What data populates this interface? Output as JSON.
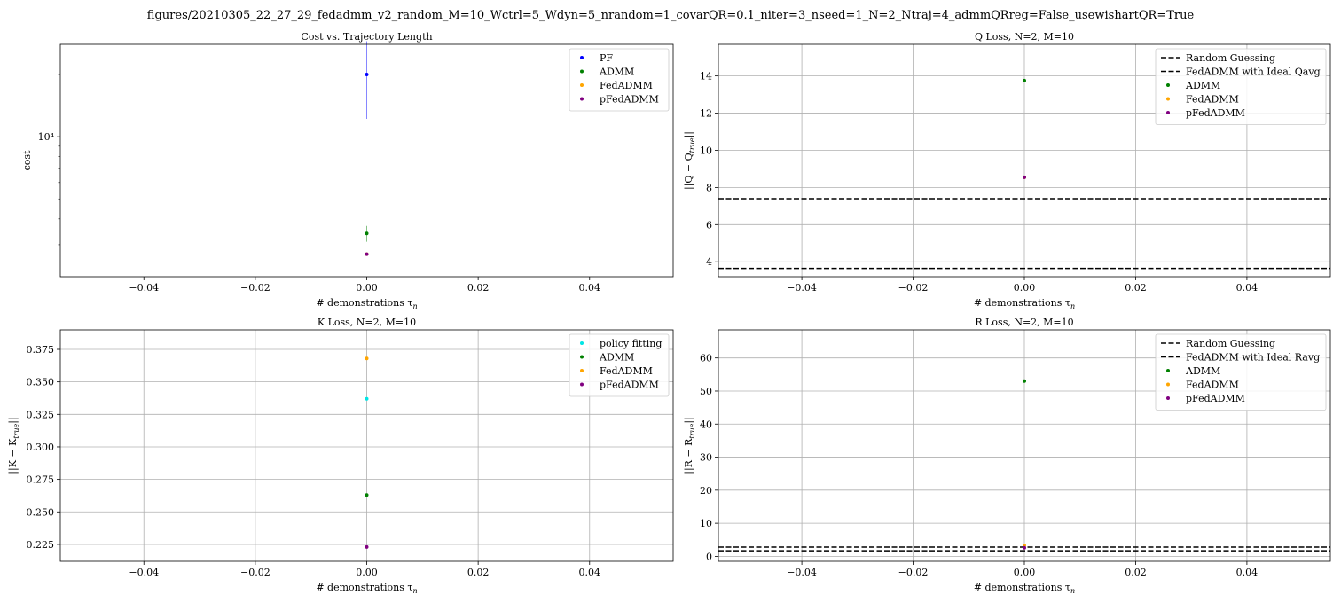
{
  "figure": {
    "suptitle": "figures/20210305_22_27_29_fedadmm_v2_random_M=10_Wctrl=5_Wdyn=5_nrandom=1_covarQR=0.1_niter=3_nseed=1_N=2_Ntraj=4_admmQRreg=False_usewishartQR=True"
  },
  "colors": {
    "PF": "#0000ff",
    "policy_fitting": "#00e5e5",
    "ADMM": "#008000",
    "FedADMM": "#ffa500",
    "pFedADMM": "#800080",
    "reference": "#000000",
    "grid": "#b0b0b0"
  },
  "chart_data": [
    {
      "id": "cost",
      "type": "scatter",
      "title": "Cost vs. Trajectory Length",
      "xlabel": "# demonstrations τ",
      "xlabel_sub": "n",
      "ylabel": "cost",
      "yscale": "log",
      "xlim": [
        -0.055,
        0.055
      ],
      "ylim": [
        2100,
        28000
      ],
      "x_ticks": [
        -0.04,
        -0.02,
        0.0,
        0.02,
        0.04
      ],
      "x_tick_labels": [
        "−0.04",
        "−0.02",
        "0.00",
        "0.02",
        "0.04"
      ],
      "y_ticks": [
        10000
      ],
      "y_tick_labels": [
        "10⁴"
      ],
      "grid": false,
      "legend_position": "top-right",
      "series": [
        {
          "name": "PF",
          "color_key": "PF",
          "x": [
            0.0
          ],
          "y": [
            20000
          ],
          "err": [
            [
              12200,
              29000
            ]
          ]
        },
        {
          "name": "ADMM",
          "color_key": "ADMM",
          "x": [
            0.0
          ],
          "y": [
            3400
          ],
          "err": [
            [
              3100,
              3700
            ]
          ]
        },
        {
          "name": "FedADMM",
          "color_key": "FedADMM",
          "x": [
            0.0
          ],
          "y": [
            2700
          ],
          "err": []
        },
        {
          "name": "pFedADMM",
          "color_key": "pFedADMM",
          "x": [
            0.0
          ],
          "y": [
            2700
          ],
          "err": []
        }
      ]
    },
    {
      "id": "qloss",
      "type": "scatter",
      "title": "Q Loss, N=2, M=10",
      "xlabel": "# demonstrations τ",
      "xlabel_sub": "n",
      "ylabel": "||Q − Q",
      "ylabel_sub": "true",
      "ylabel_end": "||",
      "yscale": "linear",
      "xlim": [
        -0.055,
        0.055
      ],
      "ylim": [
        3.2,
        15.7
      ],
      "x_ticks": [
        -0.04,
        -0.02,
        0.0,
        0.02,
        0.04
      ],
      "x_tick_labels": [
        "−0.04",
        "−0.02",
        "0.00",
        "0.02",
        "0.04"
      ],
      "y_ticks": [
        4,
        6,
        8,
        10,
        12,
        14
      ],
      "y_tick_labels": [
        "4",
        "6",
        "8",
        "10",
        "12",
        "14"
      ],
      "grid": true,
      "legend_position": "top-right",
      "hlines": [
        {
          "name": "Random Guessing",
          "y": 7.4
        },
        {
          "name": "FedADMM with Ideal Qavg",
          "y": 3.65
        }
      ],
      "series": [
        {
          "name": "ADMM",
          "color_key": "ADMM",
          "x": [
            0.0
          ],
          "y": [
            13.75
          ],
          "err": []
        },
        {
          "name": "FedADMM",
          "color_key": "FedADMM",
          "x": [
            0.0
          ],
          "y": [
            8.55
          ],
          "err": []
        },
        {
          "name": "pFedADMM",
          "color_key": "pFedADMM",
          "x": [
            0.0
          ],
          "y": [
            8.55
          ],
          "err": []
        }
      ]
    },
    {
      "id": "kloss",
      "type": "scatter",
      "title": "K Loss, N=2, M=10",
      "xlabel": "# demonstrations τ",
      "xlabel_sub": "n",
      "ylabel": "||K − K",
      "ylabel_sub": "true",
      "ylabel_end": "||",
      "yscale": "linear",
      "xlim": [
        -0.055,
        0.055
      ],
      "ylim": [
        0.212,
        0.39
      ],
      "x_ticks": [
        -0.04,
        -0.02,
        0.0,
        0.02,
        0.04
      ],
      "x_tick_labels": [
        "−0.04",
        "−0.02",
        "0.00",
        "0.02",
        "0.04"
      ],
      "y_ticks": [
        0.225,
        0.25,
        0.275,
        0.3,
        0.325,
        0.35,
        0.375
      ],
      "y_tick_labels": [
        "0.225",
        "0.250",
        "0.275",
        "0.300",
        "0.325",
        "0.350",
        "0.375"
      ],
      "grid": true,
      "legend_position": "top-right",
      "series": [
        {
          "name": "policy fitting",
          "color_key": "policy_fitting",
          "x": [
            0.0
          ],
          "y": [
            0.337
          ],
          "err": []
        },
        {
          "name": "ADMM",
          "color_key": "ADMM",
          "x": [
            0.0
          ],
          "y": [
            0.263
          ],
          "err": []
        },
        {
          "name": "FedADMM",
          "color_key": "FedADMM",
          "x": [
            0.0
          ],
          "y": [
            0.368
          ],
          "err": []
        },
        {
          "name": "pFedADMM",
          "color_key": "pFedADMM",
          "x": [
            0.0
          ],
          "y": [
            0.223
          ],
          "err": []
        }
      ]
    },
    {
      "id": "rloss",
      "type": "scatter",
      "title": "R Loss, N=2, M=10",
      "xlabel": "# demonstrations τ",
      "xlabel_sub": "n",
      "ylabel": "||R − R",
      "ylabel_sub": "true",
      "ylabel_end": "||",
      "yscale": "linear",
      "xlim": [
        -0.055,
        0.055
      ],
      "ylim": [
        -1.5,
        68.5
      ],
      "x_ticks": [
        -0.04,
        -0.02,
        0.0,
        0.02,
        0.04
      ],
      "x_tick_labels": [
        "−0.04",
        "−0.02",
        "0.00",
        "0.02",
        "0.04"
      ],
      "y_ticks": [
        0,
        10,
        20,
        30,
        40,
        50,
        60
      ],
      "y_tick_labels": [
        "0",
        "10",
        "20",
        "30",
        "40",
        "50",
        "60"
      ],
      "grid": true,
      "legend_position": "top-right",
      "hlines": [
        {
          "name": "Random Guessing",
          "y": 2.8
        },
        {
          "name": "FedADMM with Ideal Ravg",
          "y": 1.7
        }
      ],
      "series": [
        {
          "name": "ADMM",
          "color_key": "ADMM",
          "x": [
            0.0
          ],
          "y": [
            53.0
          ],
          "err": []
        },
        {
          "name": "FedADMM",
          "color_key": "FedADMM",
          "x": [
            0.0
          ],
          "y": [
            3.3
          ],
          "err": []
        },
        {
          "name": "pFedADMM",
          "color_key": "pFedADMM",
          "x": [
            0.0
          ],
          "y": [
            2.6
          ],
          "err": []
        }
      ]
    }
  ]
}
